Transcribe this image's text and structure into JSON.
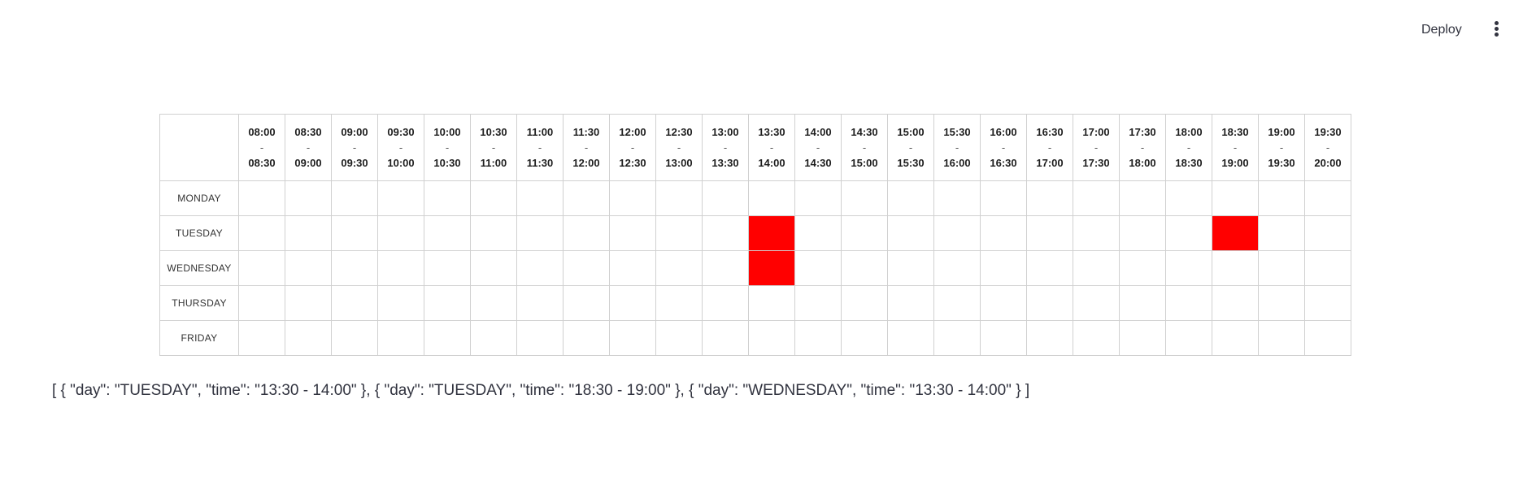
{
  "toolbar": {
    "deploy_label": "Deploy",
    "menu_icon": "vertical-ellipsis-icon"
  },
  "schedule": {
    "time_slots": [
      {
        "start": "08:00",
        "end": "08:30"
      },
      {
        "start": "08:30",
        "end": "09:00"
      },
      {
        "start": "09:00",
        "end": "09:30"
      },
      {
        "start": "09:30",
        "end": "10:00"
      },
      {
        "start": "10:00",
        "end": "10:30"
      },
      {
        "start": "10:30",
        "end": "11:00"
      },
      {
        "start": "11:00",
        "end": "11:30"
      },
      {
        "start": "11:30",
        "end": "12:00"
      },
      {
        "start": "12:00",
        "end": "12:30"
      },
      {
        "start": "12:30",
        "end": "13:00"
      },
      {
        "start": "13:00",
        "end": "13:30"
      },
      {
        "start": "13:30",
        "end": "14:00"
      },
      {
        "start": "14:00",
        "end": "14:30"
      },
      {
        "start": "14:30",
        "end": "15:00"
      },
      {
        "start": "15:00",
        "end": "15:30"
      },
      {
        "start": "15:30",
        "end": "16:00"
      },
      {
        "start": "16:00",
        "end": "16:30"
      },
      {
        "start": "16:30",
        "end": "17:00"
      },
      {
        "start": "17:00",
        "end": "17:30"
      },
      {
        "start": "17:30",
        "end": "18:00"
      },
      {
        "start": "18:00",
        "end": "18:30"
      },
      {
        "start": "18:30",
        "end": "19:00"
      },
      {
        "start": "19:00",
        "end": "19:30"
      },
      {
        "start": "19:30",
        "end": "20:00"
      }
    ],
    "separator": "-",
    "days": [
      "MONDAY",
      "TUESDAY",
      "WEDNESDAY",
      "THURSDAY",
      "FRIDAY"
    ],
    "selected": [
      {
        "day": "TUESDAY",
        "slot": 11
      },
      {
        "day": "TUESDAY",
        "slot": 21
      },
      {
        "day": "WEDNESDAY",
        "slot": 11
      }
    ],
    "selected_color": "#ff0000"
  },
  "output_text": "[ { \"day\": \"TUESDAY\", \"time\": \"13:30 - 14:00\" }, { \"day\": \"TUESDAY\", \"time\": \"18:30 - 19:00\" }, { \"day\": \"WEDNESDAY\", \"time\": \"13:30 - 14:00\" } ]"
}
